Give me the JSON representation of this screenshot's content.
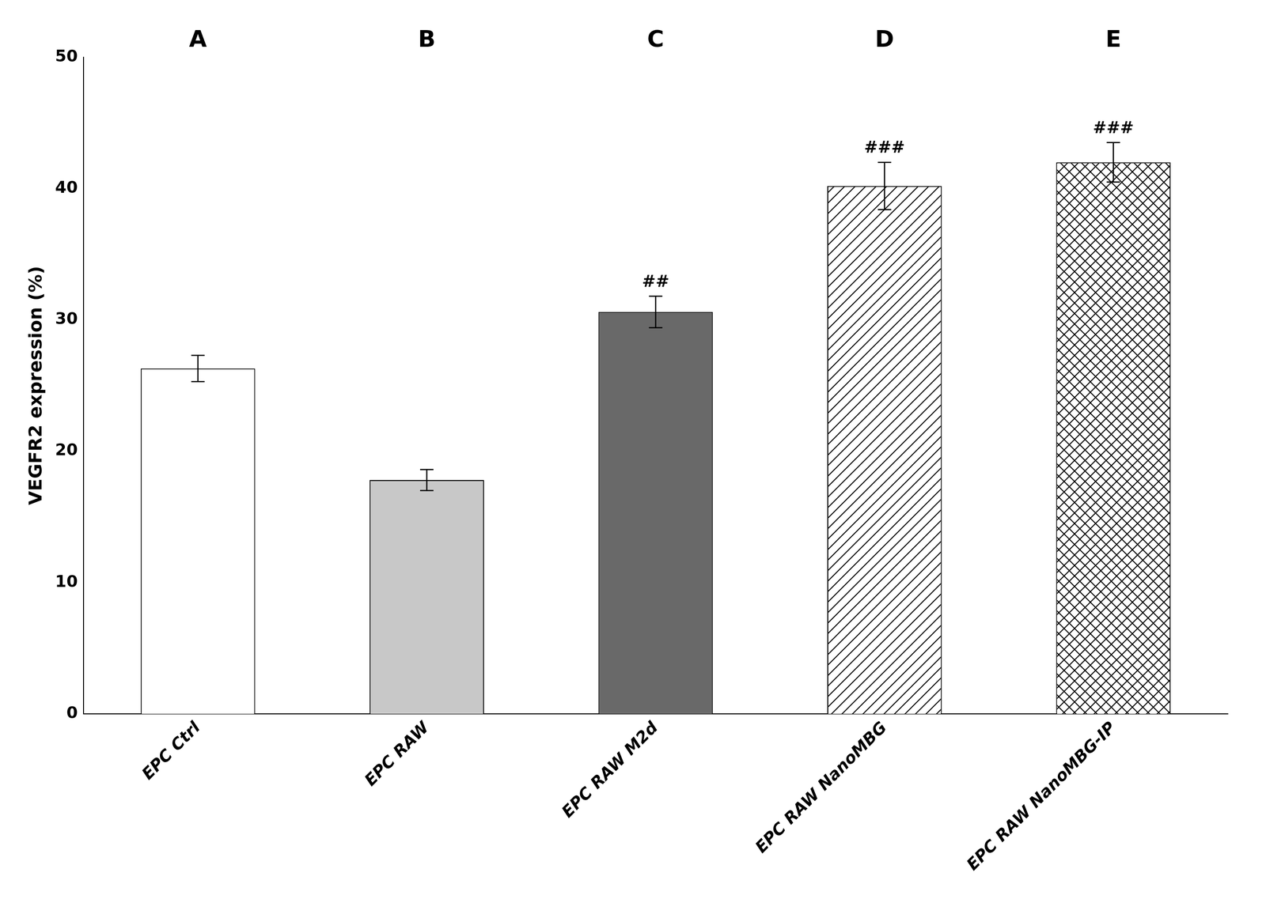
{
  "chart_data": {
    "type": "bar",
    "categories": [
      "EPC Ctrl",
      "EPC RAW",
      "EPC RAW M2d",
      "EPC RAW NanoMBG",
      "EPC RAW NanoMBG-IP"
    ],
    "values": [
      26.3,
      17.8,
      30.6,
      40.2,
      42.0
    ],
    "errors": [
      1.0,
      0.8,
      1.2,
      1.8,
      1.5
    ],
    "colors": [
      "white",
      "#c8c8c8",
      "#696969",
      "white",
      "white"
    ],
    "group_labels": [
      "A",
      "B",
      "C",
      "D",
      "E"
    ],
    "annotations": [
      {
        "category": "EPC RAW M2d",
        "text": "##"
      },
      {
        "category": "EPC RAW NanoMBG",
        "text": "###"
      },
      {
        "category": "EPC RAW NanoMBG-IP",
        "text": "###"
      }
    ],
    "ylabel": "VEGFR2 expression (%)",
    "ylim": [
      0,
      50
    ],
    "yticks": [
      0,
      10,
      20,
      30,
      40,
      50
    ],
    "grid": false
  }
}
